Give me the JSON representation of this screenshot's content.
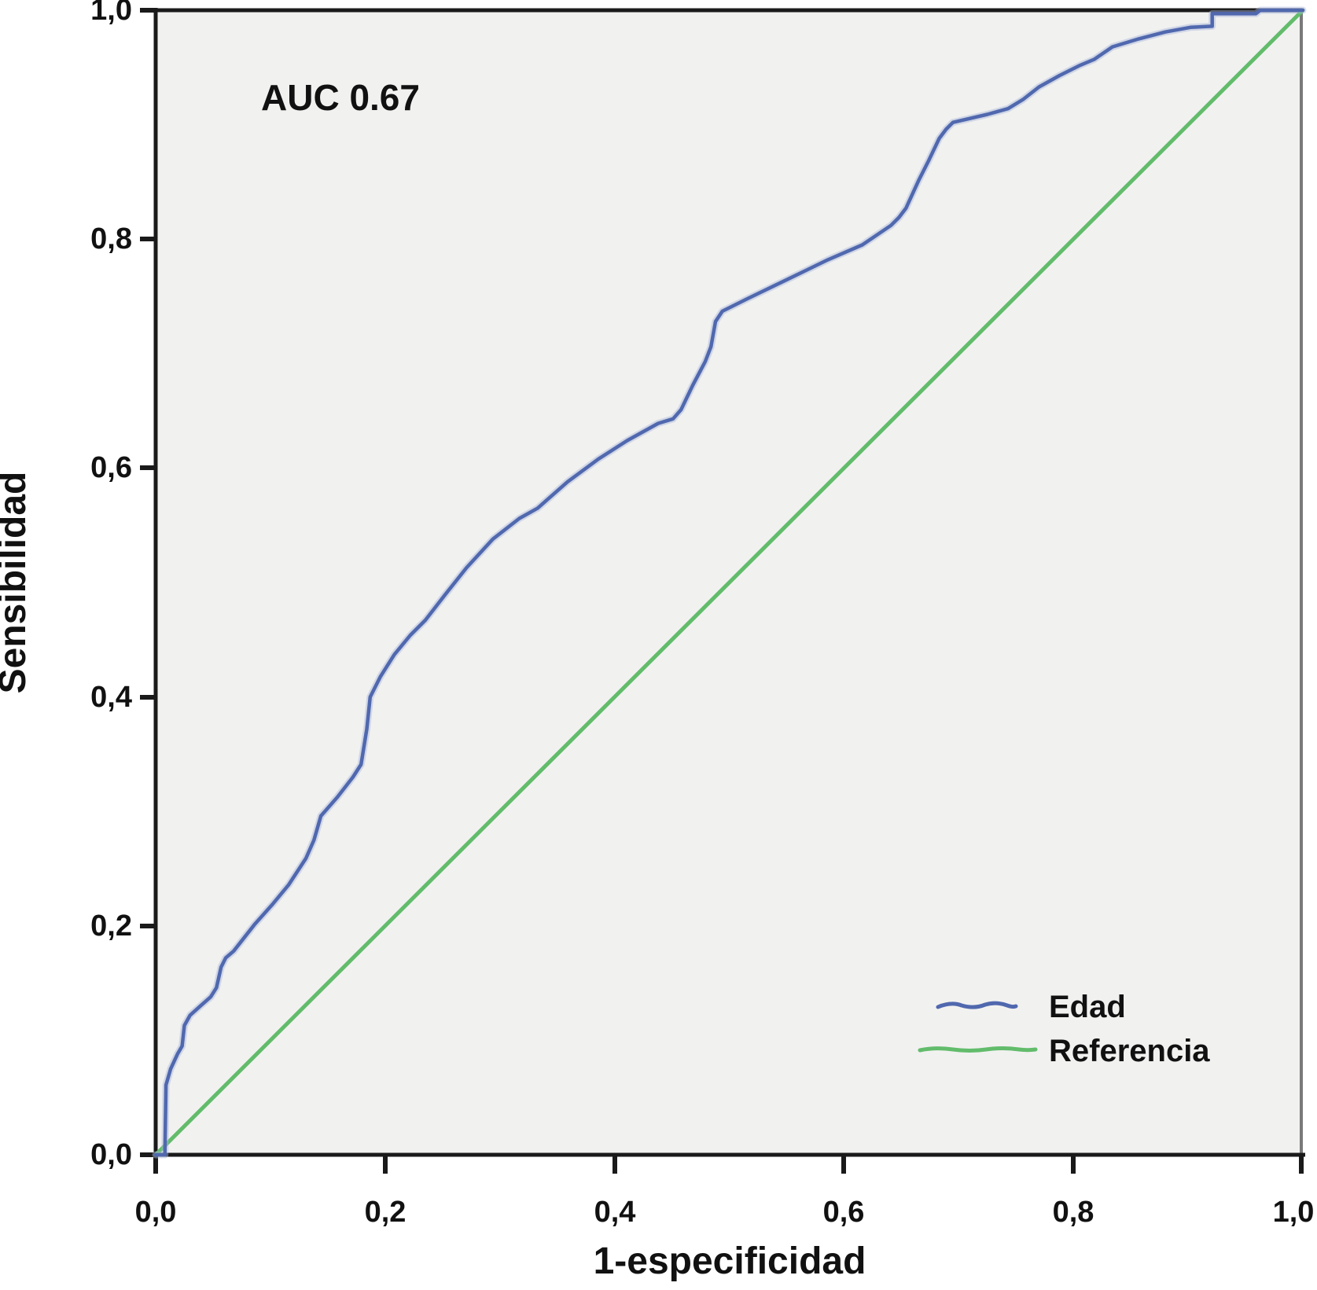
{
  "chart_data": {
    "type": "line",
    "subtype": "roc-curve",
    "annotation": "AUC 0.67",
    "xlabel": "1-especificidad",
    "ylabel": "Sensibilidad",
    "xlim": [
      0,
      1
    ],
    "ylim": [
      0,
      1
    ],
    "grid": false,
    "x_tick_labels": [
      "0,0",
      "0,2",
      "0,4",
      "0,6",
      "0,8",
      "1,0"
    ],
    "y_tick_labels": [
      "1,0",
      "0,8",
      "0,6",
      "0,4",
      "0,2",
      "0,0"
    ],
    "plot_background": "#f1f1f0",
    "frame_color": "#1a1a1a",
    "legend": {
      "position": "lower right",
      "entries": [
        {
          "label": "Edad",
          "color": "#5068ae"
        },
        {
          "label": "Referencia",
          "color": "#62bc6b"
        }
      ]
    },
    "series": [
      {
        "name": "Edad",
        "color": "#5068ae",
        "halo_color": "#a9b5da",
        "auc": 0.67,
        "points": [
          [
            0.0,
            0.0
          ],
          [
            0.008,
            0.0
          ],
          [
            0.009,
            0.061
          ],
          [
            0.013,
            0.075
          ],
          [
            0.019,
            0.088
          ],
          [
            0.023,
            0.095
          ],
          [
            0.025,
            0.113
          ],
          [
            0.03,
            0.122
          ],
          [
            0.04,
            0.131
          ],
          [
            0.048,
            0.138
          ],
          [
            0.053,
            0.146
          ],
          [
            0.057,
            0.164
          ],
          [
            0.061,
            0.172
          ],
          [
            0.068,
            0.178
          ],
          [
            0.086,
            0.201
          ],
          [
            0.102,
            0.219
          ],
          [
            0.116,
            0.236
          ],
          [
            0.131,
            0.259
          ],
          [
            0.138,
            0.275
          ],
          [
            0.144,
            0.296
          ],
          [
            0.158,
            0.312
          ],
          [
            0.172,
            0.33
          ],
          [
            0.179,
            0.341
          ],
          [
            0.184,
            0.372
          ],
          [
            0.187,
            0.4
          ],
          [
            0.196,
            0.418
          ],
          [
            0.208,
            0.437
          ],
          [
            0.222,
            0.454
          ],
          [
            0.235,
            0.467
          ],
          [
            0.252,
            0.489
          ],
          [
            0.271,
            0.513
          ],
          [
            0.294,
            0.538
          ],
          [
            0.317,
            0.556
          ],
          [
            0.333,
            0.565
          ],
          [
            0.359,
            0.588
          ],
          [
            0.386,
            0.608
          ],
          [
            0.411,
            0.624
          ],
          [
            0.438,
            0.639
          ],
          [
            0.451,
            0.643
          ],
          [
            0.458,
            0.651
          ],
          [
            0.468,
            0.672
          ],
          [
            0.479,
            0.693
          ],
          [
            0.484,
            0.706
          ],
          [
            0.488,
            0.728
          ],
          [
            0.494,
            0.737
          ],
          [
            0.516,
            0.748
          ],
          [
            0.551,
            0.765
          ],
          [
            0.586,
            0.782
          ],
          [
            0.616,
            0.795
          ],
          [
            0.641,
            0.812
          ],
          [
            0.648,
            0.819
          ],
          [
            0.654,
            0.827
          ],
          [
            0.665,
            0.851
          ],
          [
            0.674,
            0.869
          ],
          [
            0.683,
            0.888
          ],
          [
            0.689,
            0.896
          ],
          [
            0.695,
            0.902
          ],
          [
            0.725,
            0.909
          ],
          [
            0.743,
            0.914
          ],
          [
            0.756,
            0.922
          ],
          [
            0.77,
            0.933
          ],
          [
            0.788,
            0.943
          ],
          [
            0.806,
            0.952
          ],
          [
            0.818,
            0.957
          ],
          [
            0.834,
            0.968
          ],
          [
            0.857,
            0.975
          ],
          [
            0.88,
            0.981
          ],
          [
            0.902,
            0.985
          ],
          [
            0.921,
            0.986
          ],
          [
            0.921,
            0.997
          ],
          [
            0.959,
            0.997
          ],
          [
            0.963,
            1.0
          ],
          [
            1.0,
            1.0
          ]
        ]
      },
      {
        "name": "Referencia",
        "color": "#62bc6b",
        "points": [
          [
            0.0,
            0.0
          ],
          [
            1.0,
            1.0
          ]
        ]
      }
    ]
  }
}
